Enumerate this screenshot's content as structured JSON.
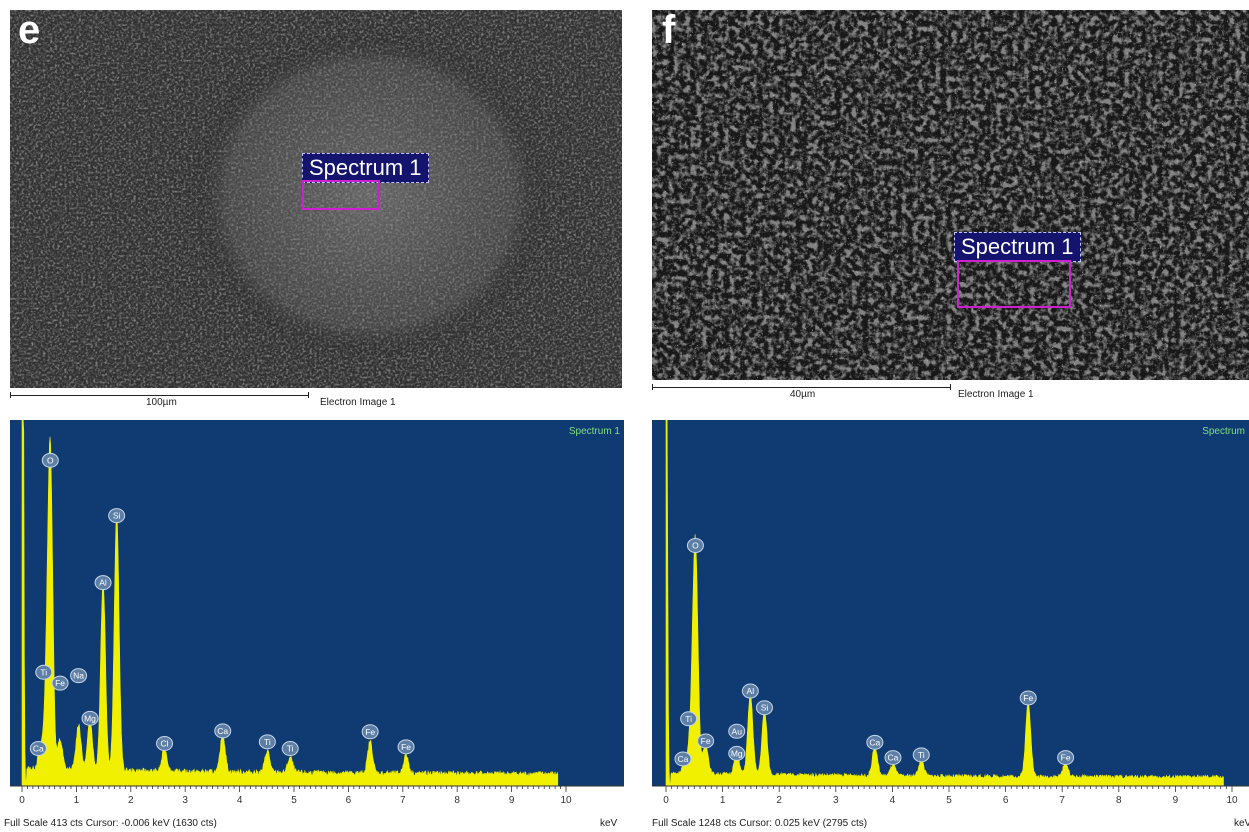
{
  "panels": [
    {
      "letter": "e",
      "spectrum_label": "Spectrum 1",
      "scale_bar": "100µm",
      "image_caption": "Electron Image 1",
      "chart_title": "Spectrum 1",
      "footer": "Full Scale 413 cts  Cursor: -0.006 keV (1630 cts)",
      "unit": "keV"
    },
    {
      "letter": "f",
      "spectrum_label": "Spectrum 1",
      "scale_bar": "40µm",
      "image_caption": "Electron Image 1",
      "chart_title": "Spectrum",
      "footer": "Full Scale 1248 cts  Cursor: 0.025 keV (2795 cts)",
      "unit": "keV"
    }
  ],
  "colors": {
    "plot_bg": "#0f3b72",
    "spectrum": "#f0f000",
    "title": "#7fe07f",
    "peak_label_bg": "#5d7fa6",
    "roi": "#d21ed2",
    "label_bg": "#14146e"
  },
  "chart_data": [
    {
      "type": "area",
      "title": "Spectrum 1",
      "xlabel": "keV",
      "ylabel": "",
      "xlim": [
        0,
        10
      ],
      "ylim": [
        0,
        413
      ],
      "x_ticks": [
        "0",
        "1",
        "2",
        "3",
        "4",
        "5",
        "6",
        "7",
        "8",
        "9",
        "10"
      ],
      "zero_peak": 1630,
      "baseline": 18,
      "peaks": [
        {
          "element": "O",
          "energy": 0.52,
          "counts": 370,
          "label_energy": 0.52,
          "label_counts": 378
        },
        {
          "element": "Si",
          "energy": 1.74,
          "counts": 305,
          "label_energy": 1.74,
          "label_counts": 312
        },
        {
          "element": "Al",
          "energy": 1.49,
          "counts": 225,
          "label_energy": 1.49,
          "label_counts": 232
        },
        {
          "element": "Na",
          "energy": 1.04,
          "counts": 55,
          "label_energy": 1.04,
          "label_counts": 121
        },
        {
          "element": "Mg",
          "energy": 1.25,
          "counts": 60,
          "label_energy": 1.25,
          "label_counts": 70
        },
        {
          "element": "Ti",
          "energy": 0.45,
          "counts": 80,
          "label_energy": 0.4,
          "label_counts": 125
        },
        {
          "element": "Fe",
          "energy": 0.7,
          "counts": 35,
          "label_energy": 0.7,
          "label_counts": 112
        },
        {
          "element": "Ca",
          "energy": 0.34,
          "counts": 25,
          "label_energy": 0.3,
          "label_counts": 34
        },
        {
          "element": "Cl",
          "energy": 2.62,
          "counts": 28,
          "label_energy": 2.62,
          "label_counts": 40
        },
        {
          "element": "Ca",
          "energy": 3.69,
          "counts": 46,
          "label_energy": 3.69,
          "label_counts": 55
        },
        {
          "element": "Ti",
          "energy": 4.51,
          "counts": 26,
          "label_energy": 4.51,
          "label_counts": 42
        },
        {
          "element": "Ti",
          "energy": 4.93,
          "counts": 18,
          "label_energy": 4.93,
          "label_counts": 34
        },
        {
          "element": "Fe",
          "energy": 6.4,
          "counts": 38,
          "label_energy": 6.4,
          "label_counts": 54
        },
        {
          "element": "Fe",
          "energy": 7.06,
          "counts": 22,
          "label_energy": 7.06,
          "label_counts": 36
        }
      ]
    },
    {
      "type": "area",
      "title": "Spectrum",
      "xlabel": "keV",
      "ylabel": "",
      "xlim": [
        0,
        10
      ],
      "ylim": [
        0,
        1248
      ],
      "x_ticks": [
        "0",
        "1",
        "2",
        "3",
        "4",
        "5",
        "6",
        "7",
        "8",
        "9",
        "10"
      ],
      "zero_peak": 2795,
      "baseline": 40,
      "peaks": [
        {
          "element": "O",
          "energy": 0.52,
          "counts": 810,
          "label_energy": 0.52,
          "label_counts": 835
        },
        {
          "element": "Al",
          "energy": 1.49,
          "counts": 290,
          "label_energy": 1.49,
          "label_counts": 310
        },
        {
          "element": "Si",
          "energy": 1.74,
          "counts": 230,
          "label_energy": 1.74,
          "label_counts": 250
        },
        {
          "element": "Ti",
          "energy": 0.45,
          "counts": 150,
          "label_energy": 0.4,
          "label_counts": 210
        },
        {
          "element": "Fe",
          "energy": 0.7,
          "counts": 110,
          "label_energy": 0.7,
          "label_counts": 130
        },
        {
          "element": "Ca",
          "energy": 0.34,
          "counts": 50,
          "label_energy": 0.3,
          "label_counts": 65
        },
        {
          "element": "Au",
          "energy": 1.25,
          "counts": 45,
          "label_energy": 1.25,
          "label_counts": 165
        },
        {
          "element": "Mg",
          "energy": 1.25,
          "counts": 30,
          "label_energy": 1.25,
          "label_counts": 85
        },
        {
          "element": "Ca",
          "energy": 3.69,
          "counts": 105,
          "label_energy": 3.69,
          "label_counts": 125
        },
        {
          "element": "Ca",
          "energy": 4.01,
          "counts": 40,
          "label_energy": 4.01,
          "label_counts": 70
        },
        {
          "element": "Ti",
          "energy": 4.51,
          "counts": 60,
          "label_energy": 4.51,
          "label_counts": 80
        },
        {
          "element": "Fe",
          "energy": 6.4,
          "counts": 270,
          "label_energy": 6.4,
          "label_counts": 285
        },
        {
          "element": "Fe",
          "energy": 7.06,
          "counts": 50,
          "label_energy": 7.06,
          "label_counts": 70
        }
      ]
    }
  ]
}
